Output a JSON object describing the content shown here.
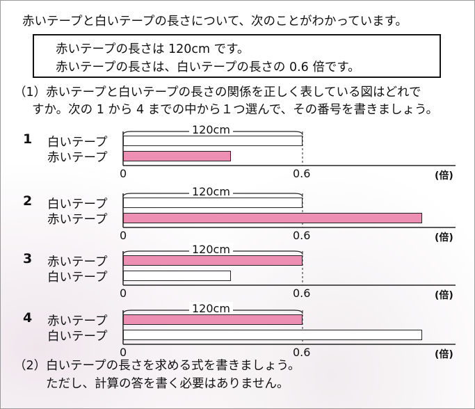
{
  "intro": "赤いテープと白いテープの長さについて、次のことがわかっています。",
  "facts": [
    "赤いテープの長さは 120cm です。",
    "赤いテープの長さは、白いテープの長さの 0.6 倍です。"
  ],
  "q1": {
    "line1": "（1）赤いテープと白いテープの長さの関係を正しく表している図はどれで",
    "line2": "すか。次の 1 から 4 までの中から１つ選んで、その番号を書きましょう。"
  },
  "options": [
    {
      "number": "1",
      "rows": [
        {
          "label": "白いテープ",
          "color": "white",
          "fraction": 1.0
        },
        {
          "label": "赤いテープ",
          "color": "pink",
          "fraction": 0.6
        }
      ],
      "brace_label": "120cm",
      "axis": [
        "0",
        "0.6"
      ],
      "unit": "(倍)"
    },
    {
      "number": "2",
      "rows": [
        {
          "label": "白いテープ",
          "color": "white",
          "fraction": 1.0
        },
        {
          "label": "赤いテープ",
          "color": "pink",
          "fraction": 1.667
        }
      ],
      "brace_label": "120cm",
      "axis": [
        "0",
        "0.6"
      ],
      "unit": "(倍)"
    },
    {
      "number": "3",
      "rows": [
        {
          "label": "赤いテープ",
          "color": "pink",
          "fraction": 1.0
        },
        {
          "label": "白いテープ",
          "color": "white",
          "fraction": 0.6
        }
      ],
      "brace_label": "120cm",
      "axis": [
        "0",
        "0.6"
      ],
      "unit": "(倍)"
    },
    {
      "number": "4",
      "rows": [
        {
          "label": "赤いテープ",
          "color": "pink",
          "fraction": 1.0
        },
        {
          "label": "白いテープ",
          "color": "white",
          "fraction": 1.667
        }
      ],
      "brace_label": "120cm",
      "axis": [
        "0",
        "0.6"
      ],
      "unit": "(倍)"
    }
  ],
  "q2": {
    "line1": "（2）白いテープの長さを求める式を書きましょう。",
    "line2": "ただし、計算の答を書く必要はありません。"
  },
  "colors": {
    "pink": "#ec8fb2",
    "white": "#ffffff",
    "border": "#111111"
  }
}
